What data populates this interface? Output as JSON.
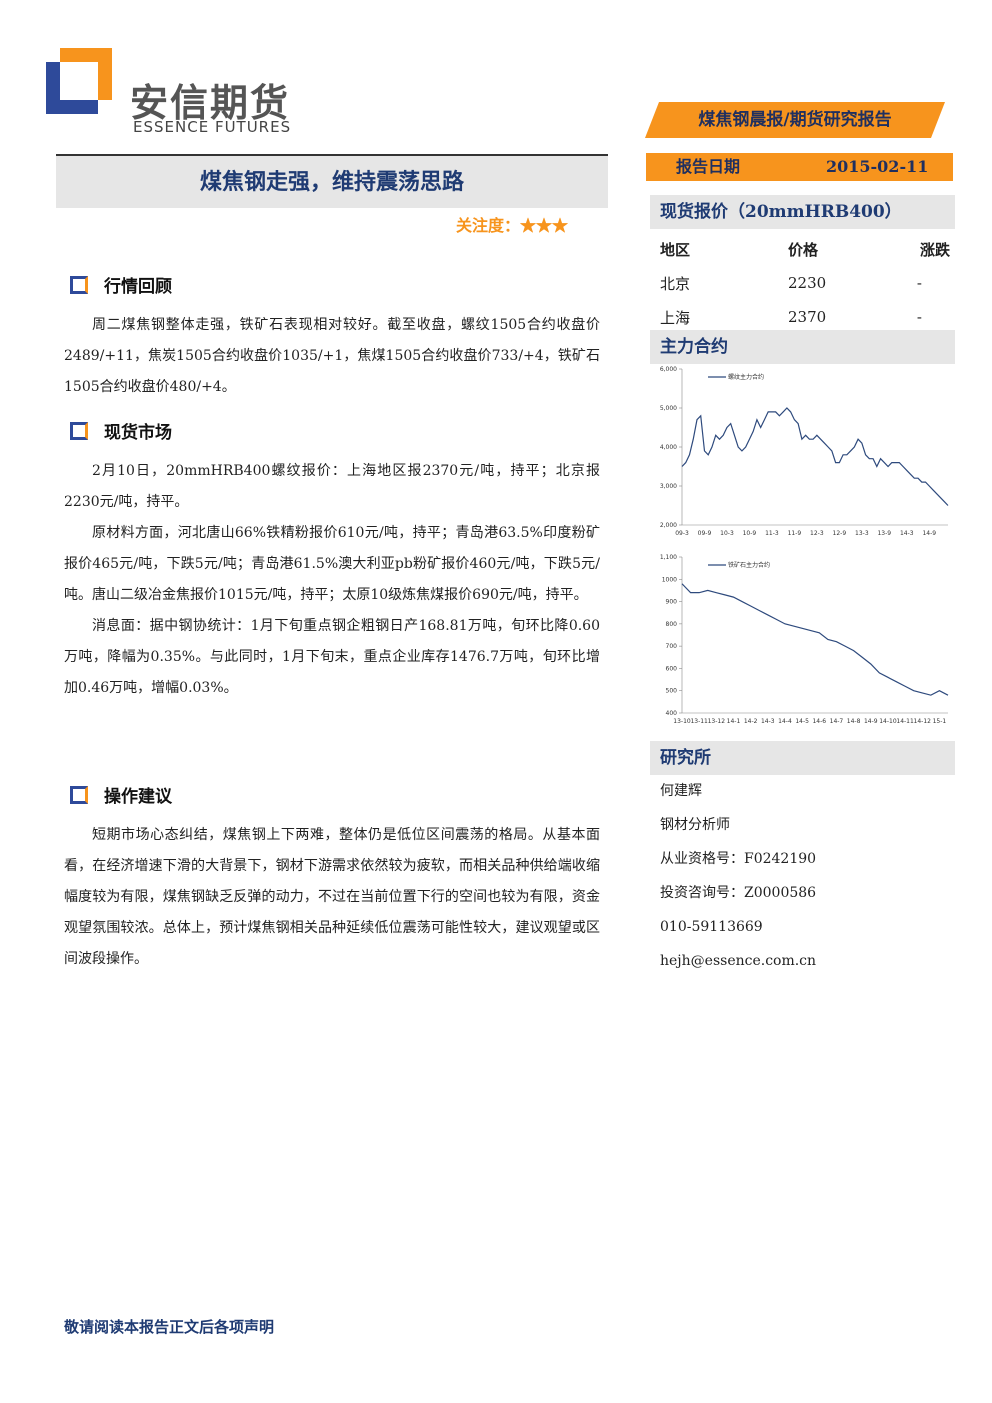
{
  "header": {
    "logo_cn": "安信期货",
    "logo_en": "ESSENCE FUTURES",
    "report_tag": "煤焦钢晨报/期货研究报告"
  },
  "title": "煤焦钢走强，维持震荡思路",
  "attention": "关注度：★★★",
  "report_date": {
    "label": "报告日期",
    "value": "2015-02-11"
  },
  "sections": [
    {
      "heading": "行情回顾",
      "paragraphs": [
        "周二煤焦钢整体走强，铁矿石表现相对较好。截至收盘，螺纹1505合约收盘价2489/+11，焦炭1505合约收盘价1035/+1，焦煤1505合约收盘价733/+4，铁矿石1505合约收盘价480/+4。"
      ]
    },
    {
      "heading": "现货市场",
      "paragraphs": [
        "2月10日，20mmHRB400螺纹报价：上海地区报2370元/吨，持平；北京报2230元/吨，持平。",
        "原材料方面，河北唐山66%铁精粉报价610元/吨，持平；青岛港63.5%印度粉矿报价465元/吨，下跌5元/吨；青岛港61.5%澳大利亚pb粉矿报价460元/吨，下跌5元/吨。唐山二级冶金焦报价1015元/吨，持平；太原10级炼焦煤报价690元/吨，持平。",
        "消息面：据中钢协统计：1月下旬重点钢企粗钢日产168.81万吨，旬环比降0.60万吨，降幅为0.35%。与此同时，1月下旬末，重点企业库存1476.7万吨，旬环比增加0.46万吨，增幅0.03%。"
      ]
    },
    {
      "heading": "操作建议",
      "paragraphs": [
        "短期市场心态纠结，煤焦钢上下两难，整体仍是低位区间震荡的格局。从基本面看，在经济增速下滑的大背景下，钢材下游需求依然较为疲软，而相关品种供给端收缩幅度较为有限，煤焦钢缺乏反弹的动力，不过在当前位置下行的空间也较为有限，资金观望氛围较浓。总体上，预计煤焦钢相关品种延续低位震荡可能性较大，建议观望或区间波段操作。"
      ]
    }
  ],
  "spot": {
    "heading": "现货报价（20mmHRB400）",
    "columns": [
      "地区",
      "价格",
      "涨跌"
    ],
    "rows": [
      [
        "北京",
        2230,
        "-"
      ],
      [
        "上海",
        2370,
        "-"
      ]
    ]
  },
  "futures_heading": "主力合约",
  "chart_data": [
    {
      "type": "line",
      "categories": [
        "09-3",
        null,
        null,
        null,
        null,
        null,
        "09-9",
        null,
        null,
        null,
        null,
        null,
        "10-3",
        null,
        null,
        null,
        null,
        null,
        "10-9",
        null,
        null,
        null,
        null,
        null,
        "11-3",
        null,
        null,
        null,
        null,
        null,
        "11-9",
        null,
        null,
        null,
        null,
        null,
        "12-3",
        null,
        null,
        null,
        null,
        null,
        "12-9",
        null,
        null,
        null,
        null,
        null,
        "13-3",
        null,
        null,
        null,
        null,
        null,
        "13-9",
        null,
        null,
        null,
        null,
        null,
        "14-3",
        null,
        null,
        null,
        null,
        null,
        "14-9",
        null,
        null,
        null,
        null,
        null
      ],
      "series": [
        {
          "name": "螺纹主力合约",
          "color": "#2e4a7d",
          "values": [
            3500,
            3600,
            3800,
            4200,
            4700,
            4800,
            3900,
            3800,
            4000,
            4300,
            4200,
            4300,
            4500,
            4600,
            4300,
            4000,
            3900,
            4000,
            4200,
            4400,
            4700,
            4500,
            4700,
            4900,
            4900,
            4900,
            4800,
            4900,
            5000,
            4900,
            4700,
            4600,
            4200,
            4300,
            4200,
            4200,
            4300,
            4200,
            4100,
            4000,
            3900,
            3600,
            3600,
            3800,
            3800,
            3900,
            4000,
            4200,
            4100,
            3800,
            3700,
            3700,
            3500,
            3700,
            3600,
            3500,
            3600,
            3600,
            3600,
            3500,
            3400,
            3300,
            3200,
            3200,
            3100,
            3100,
            3000,
            2900,
            2800,
            2700,
            2600,
            2500
          ]
        }
      ],
      "ylim": [
        2000,
        6000
      ],
      "yticks": [
        {
          "value": 2000,
          "label": "2,000"
        },
        {
          "value": 3000,
          "label": "3,000"
        },
        {
          "value": 4000,
          "label": "4,000"
        },
        {
          "value": 5000,
          "label": "5,000"
        },
        {
          "value": 6000,
          "label": "6,000"
        }
      ]
    },
    {
      "type": "line",
      "categories": [
        "13-10",
        null,
        "13-11",
        null,
        "13-12",
        null,
        "14-1",
        null,
        "14-2",
        null,
        "14-3",
        null,
        "14-4",
        null,
        "14-5",
        null,
        "14-6",
        null,
        "14-7",
        null,
        "14-8",
        null,
        "14-9",
        null,
        "14-10",
        null,
        "14-11",
        null,
        "14-12",
        null,
        "15-1",
        null
      ],
      "series": [
        {
          "name": "铁矿石主力合约",
          "color": "#2e4a7d",
          "values": [
            980,
            940,
            940,
            950,
            940,
            930,
            920,
            900,
            880,
            860,
            840,
            820,
            800,
            790,
            780,
            770,
            760,
            730,
            720,
            700,
            680,
            650,
            620,
            580,
            560,
            540,
            520,
            500,
            490,
            480,
            500,
            480
          ]
        }
      ],
      "ylim": [
        400,
        1100
      ],
      "yticks": [
        400,
        500,
        600,
        700,
        800,
        900,
        1000,
        {
          "value": 1100,
          "label": "1,100"
        }
      ]
    }
  ],
  "research": {
    "heading": "研究所",
    "lines": [
      "何建辉",
      "钢材分析师",
      "从业资格号：F0242190",
      "投资咨询号：Z0000586",
      "010-59113669",
      "hejh@essence.com.cn"
    ]
  },
  "footer": "敬请阅读本报告正文后各项声明"
}
